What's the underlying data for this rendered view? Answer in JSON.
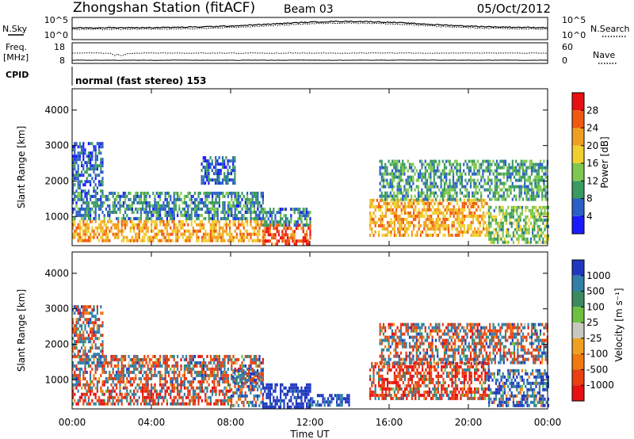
{
  "header": {
    "station": "Zhongshan Station (fitACF)",
    "beam": "Beam 03",
    "date": "05/Oct/2012"
  },
  "noise_panel": {
    "left_label": "N.Sky",
    "left_tick_top": "10^5",
    "left_tick_bottom": "10^0",
    "right_tick_top": "10^5",
    "right_tick_bottom": "10^0",
    "right_label": "N.Search"
  },
  "freq_panel": {
    "left_label_line1": "Freq.",
    "left_label_line2": "[MHz]",
    "left_tick_top": "18",
    "left_tick_bottom": "8",
    "right_tick_top": "60",
    "right_tick_bottom": "0",
    "right_label": "Nave"
  },
  "cpid_panel": {
    "label": "CPID",
    "mode_text": "normal (fast stereo) 153"
  },
  "ylabel": "Slant Range [km]",
  "y_ticks": [
    "1000",
    "2000",
    "3000",
    "4000"
  ],
  "xlabel": "Time UT",
  "x_ticks": [
    "00:00",
    "04:00",
    "08:00",
    "12:00",
    "16:00",
    "20:00",
    "00:00"
  ],
  "power_colorbar": {
    "label": "Power [dB]",
    "ticks": [
      "4",
      "8",
      "12",
      "16",
      "20",
      "24",
      "28"
    ],
    "colors": [
      "#1a1aff",
      "#2a5fc8",
      "#3a9a60",
      "#7ec850",
      "#f0d030",
      "#f0a020",
      "#f05a10",
      "#e81010"
    ]
  },
  "velocity_colorbar": {
    "label": "Velocity [m s⁻¹]",
    "ticks": [
      "1000",
      "500",
      "100",
      "25",
      "-25",
      "-100",
      "-500",
      "-1000"
    ],
    "colors": [
      "#2038c0",
      "#2f7fa8",
      "#3a8a60",
      "#6ec040",
      "#c8c8c0",
      "#f0a020",
      "#f07a10",
      "#e84010",
      "#e81010"
    ]
  },
  "chart_data": [
    {
      "type": "heatmap",
      "title": "Power",
      "xlabel": "Time UT",
      "ylabel": "Slant Range [km]",
      "xlim": [
        0,
        24
      ],
      "ylim": [
        180,
        4600
      ],
      "value_label": "Power [dB]",
      "value_range": [
        0,
        30
      ],
      "blobs": [
        {
          "t0": 0.0,
          "t1": 9.6,
          "r0": 300,
          "r1": 900,
          "value": 20
        },
        {
          "t0": 0.0,
          "t1": 9.6,
          "r0": 900,
          "r1": 1700,
          "value": 8
        },
        {
          "t0": 0.0,
          "t1": 1.5,
          "r0": 1700,
          "r1": 3100,
          "value": 6
        },
        {
          "t0": 6.5,
          "t1": 8.2,
          "r0": 1900,
          "r1": 2700,
          "value": 6
        },
        {
          "t0": 9.6,
          "t1": 12.0,
          "r0": 250,
          "r1": 800,
          "value": 26
        },
        {
          "t0": 9.6,
          "t1": 12.0,
          "r0": 800,
          "r1": 1250,
          "value": 8
        },
        {
          "t0": 15.0,
          "t1": 21.0,
          "r0": 500,
          "r1": 1500,
          "value": 20
        },
        {
          "t0": 15.5,
          "t1": 24.0,
          "r0": 1500,
          "r1": 2600,
          "value": 10
        },
        {
          "t0": 21.0,
          "t1": 24.0,
          "r0": 300,
          "r1": 1300,
          "value": 12
        }
      ]
    },
    {
      "type": "heatmap",
      "title": "Velocity",
      "xlabel": "Time UT",
      "ylabel": "Slant Range [km]",
      "xlim": [
        0,
        24
      ],
      "ylim": [
        180,
        4600
      ],
      "value_label": "Velocity [m s⁻¹]",
      "value_range": [
        -1000,
        1000
      ],
      "blobs": [
        {
          "t0": 0.0,
          "t1": 8.0,
          "r0": 300,
          "r1": 900,
          "value": -100
        },
        {
          "t0": 0.0,
          "t1": 9.6,
          "r0": 900,
          "r1": 1700,
          "value": 0
        },
        {
          "t0": 0.0,
          "t1": 1.5,
          "r0": 1700,
          "r1": 3100,
          "value": 0
        },
        {
          "t0": 8.0,
          "t1": 9.6,
          "r0": 300,
          "r1": 1300,
          "value": 80
        },
        {
          "t0": 9.6,
          "t1": 12.0,
          "r0": 250,
          "r1": 900,
          "value": 400
        },
        {
          "t0": 12.0,
          "t1": 14.0,
          "r0": 250,
          "r1": 600,
          "value": 300
        },
        {
          "t0": 15.0,
          "t1": 21.0,
          "r0": 500,
          "r1": 1500,
          "value": -150
        },
        {
          "t0": 15.5,
          "t1": 24.0,
          "r0": 1500,
          "r1": 2600,
          "value": 0
        },
        {
          "t0": 21.0,
          "t1": 24.0,
          "r0": 300,
          "r1": 1300,
          "value": 200
        }
      ]
    }
  ]
}
